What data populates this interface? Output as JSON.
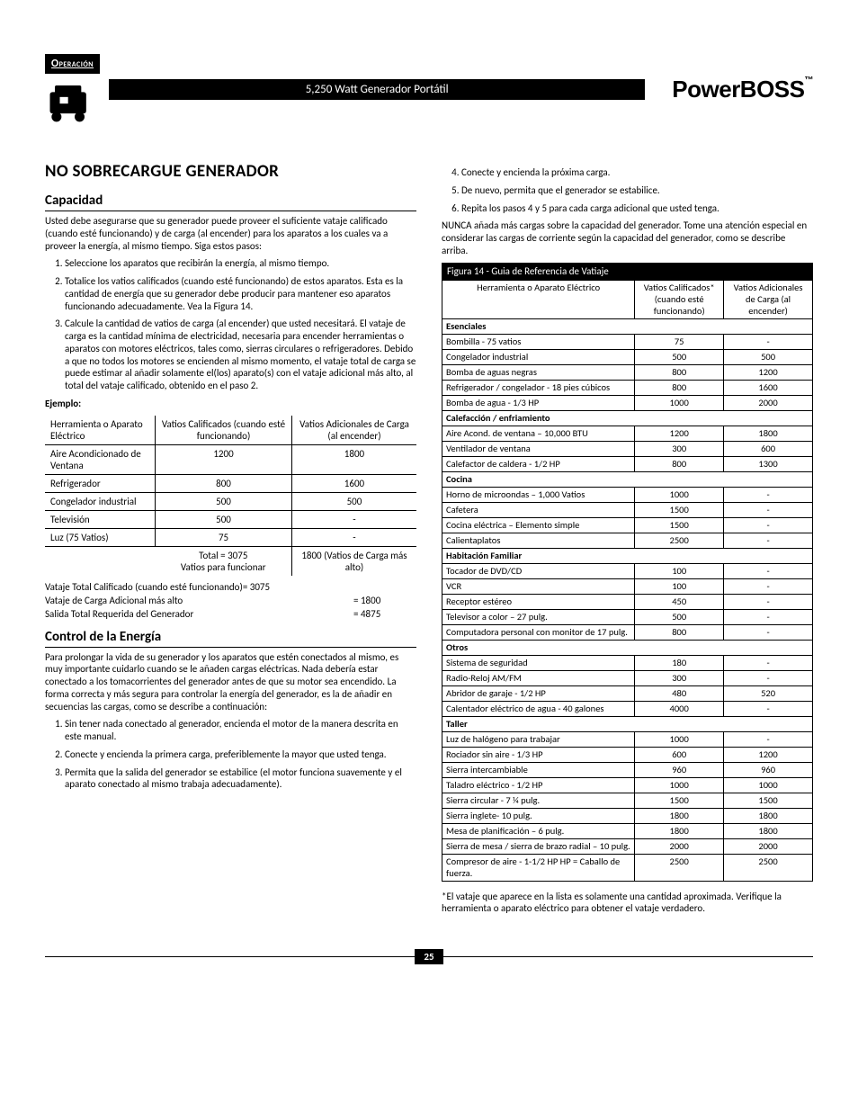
{
  "header": {
    "badge": "Operación",
    "title": "5,250 Watt Generador Portátil",
    "brand": "PowerBOSS",
    "brand_tm": "™"
  },
  "main_title": "NO SOBRECARGUE GENERADOR",
  "capacity": {
    "heading": "Capacidad",
    "intro": "Usted debe asegurarse que su generador puede proveer el suficiente vataje calificado (cuando esté funcionando) y de carga (al encender) para los aparatos a los cuales va a proveer la energía, al mismo tiempo. Siga estos pasos:",
    "steps": [
      "Seleccione los aparatos que recibirán la energía, al mismo tiempo.",
      "Totalice los vatios calificados (cuando esté funcionando) de estos aparatos. Esta es la cantidad de energía que su generador debe producir para mantener eso aparatos funcionando adecuadamente. Vea la Figura 14.",
      "Calcule la cantidad de vatios de carga (al encender) que usted necesitará. El vataje de carga es la cantidad mínima de electricidad, necesaria para encender herramientas o aparatos con motores eléctricos, tales como, sierras circulares o refrigeradores. Debido a que no todos los motores se encienden al mismo momento, el vataje total de carga se puede estimar al añadir solamente el(los) aparato(s) con el vataje adicional más alto, al total del vataje calificado, obtenido en el paso 2."
    ],
    "example_label": "Ejemplo:",
    "example_headers": {
      "tool": "Herramienta o Aparato Eléctrico",
      "rated": "Vatios Calificados (cuando esté funcionando)",
      "surge": "Vatios Adicionales de Carga (al encender)"
    },
    "example_rows": [
      {
        "tool": "Aire Acondicionado de Ventana",
        "rated": "1200",
        "surge": "1800"
      },
      {
        "tool": "Refrigerador",
        "rated": "800",
        "surge": "1600"
      },
      {
        "tool": "Congelador industrial",
        "rated": "500",
        "surge": "500"
      },
      {
        "tool": "Televisión",
        "rated": "500",
        "surge": "-"
      },
      {
        "tool": "Luz (75 Vatios)",
        "rated": "75",
        "surge": "-"
      }
    ],
    "example_total": {
      "rated": "Total = 3075",
      "rated2": "Vatios para funcionar",
      "surge": "1800 (Vatios de Carga más alto)"
    },
    "totals": [
      {
        "label": "Vataje Total Calificado (cuando esté funcionando)= 3075",
        "val": ""
      },
      {
        "label": "Vataje de Carga Adicional más alto",
        "val": "= 1800"
      },
      {
        "label": "Salida Total Requerida del Generador",
        "val": "= 4875"
      }
    ]
  },
  "control": {
    "heading": "Control de la Energía",
    "intro": "Para prolongar la vida de su generador y los aparatos que estén conectados al mismo, es muy importante cuidarlo cuando se le añaden cargas eléctricas. Nada debería estar conectado a los tomacorrientes del generador antes de que su motor sea encendido. La forma correcta y más segura para controlar la energía del generador, es la de añadir en secuencias las cargas, como se describe a continuación:",
    "steps": [
      "Sin tener nada conectado al generador, encienda el motor de la manera descrita en este manual.",
      "Conecte y encienda la primera carga, preferiblemente la mayor que usted tenga.",
      "Permita que la salida del generador se estabilice (el motor funciona suavemente y el aparato conectado al mismo trabaja adecuadamente)."
    ]
  },
  "right_steps": [
    "Conecte y encienda la próxima carga.",
    "De nuevo, permita que el generador se estabilice.",
    "Repita los pasos 4 y 5 para cada carga adicional que usted tenga."
  ],
  "warning": "NUNCA añada más cargas sobre la capacidad del generador. Tome una atención especial en considerar las cargas de corriente según la capacidad del generador, como se describe arriba.",
  "ref": {
    "caption": "Figura 14 - Guia de Referencia de Vatiaje",
    "headers": {
      "tool": "Herramienta o Aparato Eléctrico",
      "rated": "Vatios Calificados* (cuando esté funcionando)",
      "surge": "Vatios Adicionales de Carga (al encender)"
    },
    "sections": [
      {
        "title": "Esenciales",
        "rows": [
          {
            "tool": "Bombilla - 75 vatios",
            "rated": "75",
            "surge": "-"
          },
          {
            "tool": "Congelador industrial",
            "rated": "500",
            "surge": "500"
          },
          {
            "tool": "Bomba de aguas negras",
            "rated": "800",
            "surge": "1200"
          },
          {
            "tool": "Refrigerador / congelador - 18 pies cúbicos",
            "rated": "800",
            "surge": "1600"
          },
          {
            "tool": "Bomba de agua - 1/3 HP",
            "rated": "1000",
            "surge": "2000"
          }
        ]
      },
      {
        "title": "Calefacción / enfriamiento",
        "rows": [
          {
            "tool": "Aire Acond. de ventana – 10,000 BTU",
            "rated": "1200",
            "surge": "1800"
          },
          {
            "tool": "Ventilador de ventana",
            "rated": "300",
            "surge": "600"
          },
          {
            "tool": "Calefactor de caldera  - 1/2 HP",
            "rated": "800",
            "surge": "1300"
          }
        ]
      },
      {
        "title": "Cocina",
        "rows": [
          {
            "tool": "Horno de microondas – 1,000 Vatios",
            "rated": "1000",
            "surge": "-"
          },
          {
            "tool": "Cafetera",
            "rated": "1500",
            "surge": "-"
          },
          {
            "tool": "Cocina eléctrica – Elemento simple",
            "rated": "1500",
            "surge": "-"
          },
          {
            "tool": "Calientaplatos",
            "rated": "2500",
            "surge": "-"
          }
        ]
      },
      {
        "title": "Habitación Familiar",
        "rows": [
          {
            "tool": "Tocador de DVD/CD",
            "rated": "100",
            "surge": "-"
          },
          {
            "tool": "VCR",
            "rated": "100",
            "surge": "-"
          },
          {
            "tool": "Receptor estéreo",
            "rated": "450",
            "surge": "-"
          },
          {
            "tool": "Televisor a color – 27 pulg.",
            "rated": "500",
            "surge": "-"
          },
          {
            "tool": "Computadora personal con monitor de 17 pulg.",
            "rated": "800",
            "surge": "-"
          }
        ]
      },
      {
        "title": "Otros",
        "rows": [
          {
            "tool": "Sistema de seguridad",
            "rated": "180",
            "surge": "-"
          },
          {
            "tool": "Radio-Reloj AM/FM",
            "rated": "300",
            "surge": "-"
          },
          {
            "tool": "Abridor de garaje - 1/2 HP",
            "rated": "480",
            "surge": "520"
          },
          {
            "tool": "Calentador eléctrico de agua - 40 galones",
            "rated": "4000",
            "surge": "-"
          }
        ]
      },
      {
        "title": "Taller",
        "rows": [
          {
            "tool": "Luz de halógeno para trabajar",
            "rated": "1000",
            "surge": "-"
          },
          {
            "tool": "Rociador sin aire - 1/3 HP",
            "rated": "600",
            "surge": "1200"
          },
          {
            "tool": "Sierra intercambiable",
            "rated": "960",
            "surge": "960"
          },
          {
            "tool": "Taladro eléctrico - 1/2 HP",
            "rated": "1000",
            "surge": "1000"
          },
          {
            "tool": "Sierra circular - 7 ¼  pulg.",
            "rated": "1500",
            "surge": "1500"
          },
          {
            "tool": "Sierra inglete- 10 pulg.",
            "rated": "1800",
            "surge": "1800"
          },
          {
            "tool": "Mesa de planificación – 6 pulg.",
            "rated": "1800",
            "surge": "1800"
          },
          {
            "tool": "Sierra de mesa / sierra de brazo radial – 10 pulg.",
            "rated": "2000",
            "surge": "2000"
          },
          {
            "tool": "Compresor de aire - 1-1/2 HP HP = Caballo de fuerza.",
            "rated": "2500",
            "surge": "2500"
          }
        ]
      }
    ],
    "footnote": "*El vataje que aparece en la lista es solamente una cantidad aproximada. Verifique la herramienta o aparato eléctrico para obtener el vataje verdadero."
  },
  "page_number": "25"
}
